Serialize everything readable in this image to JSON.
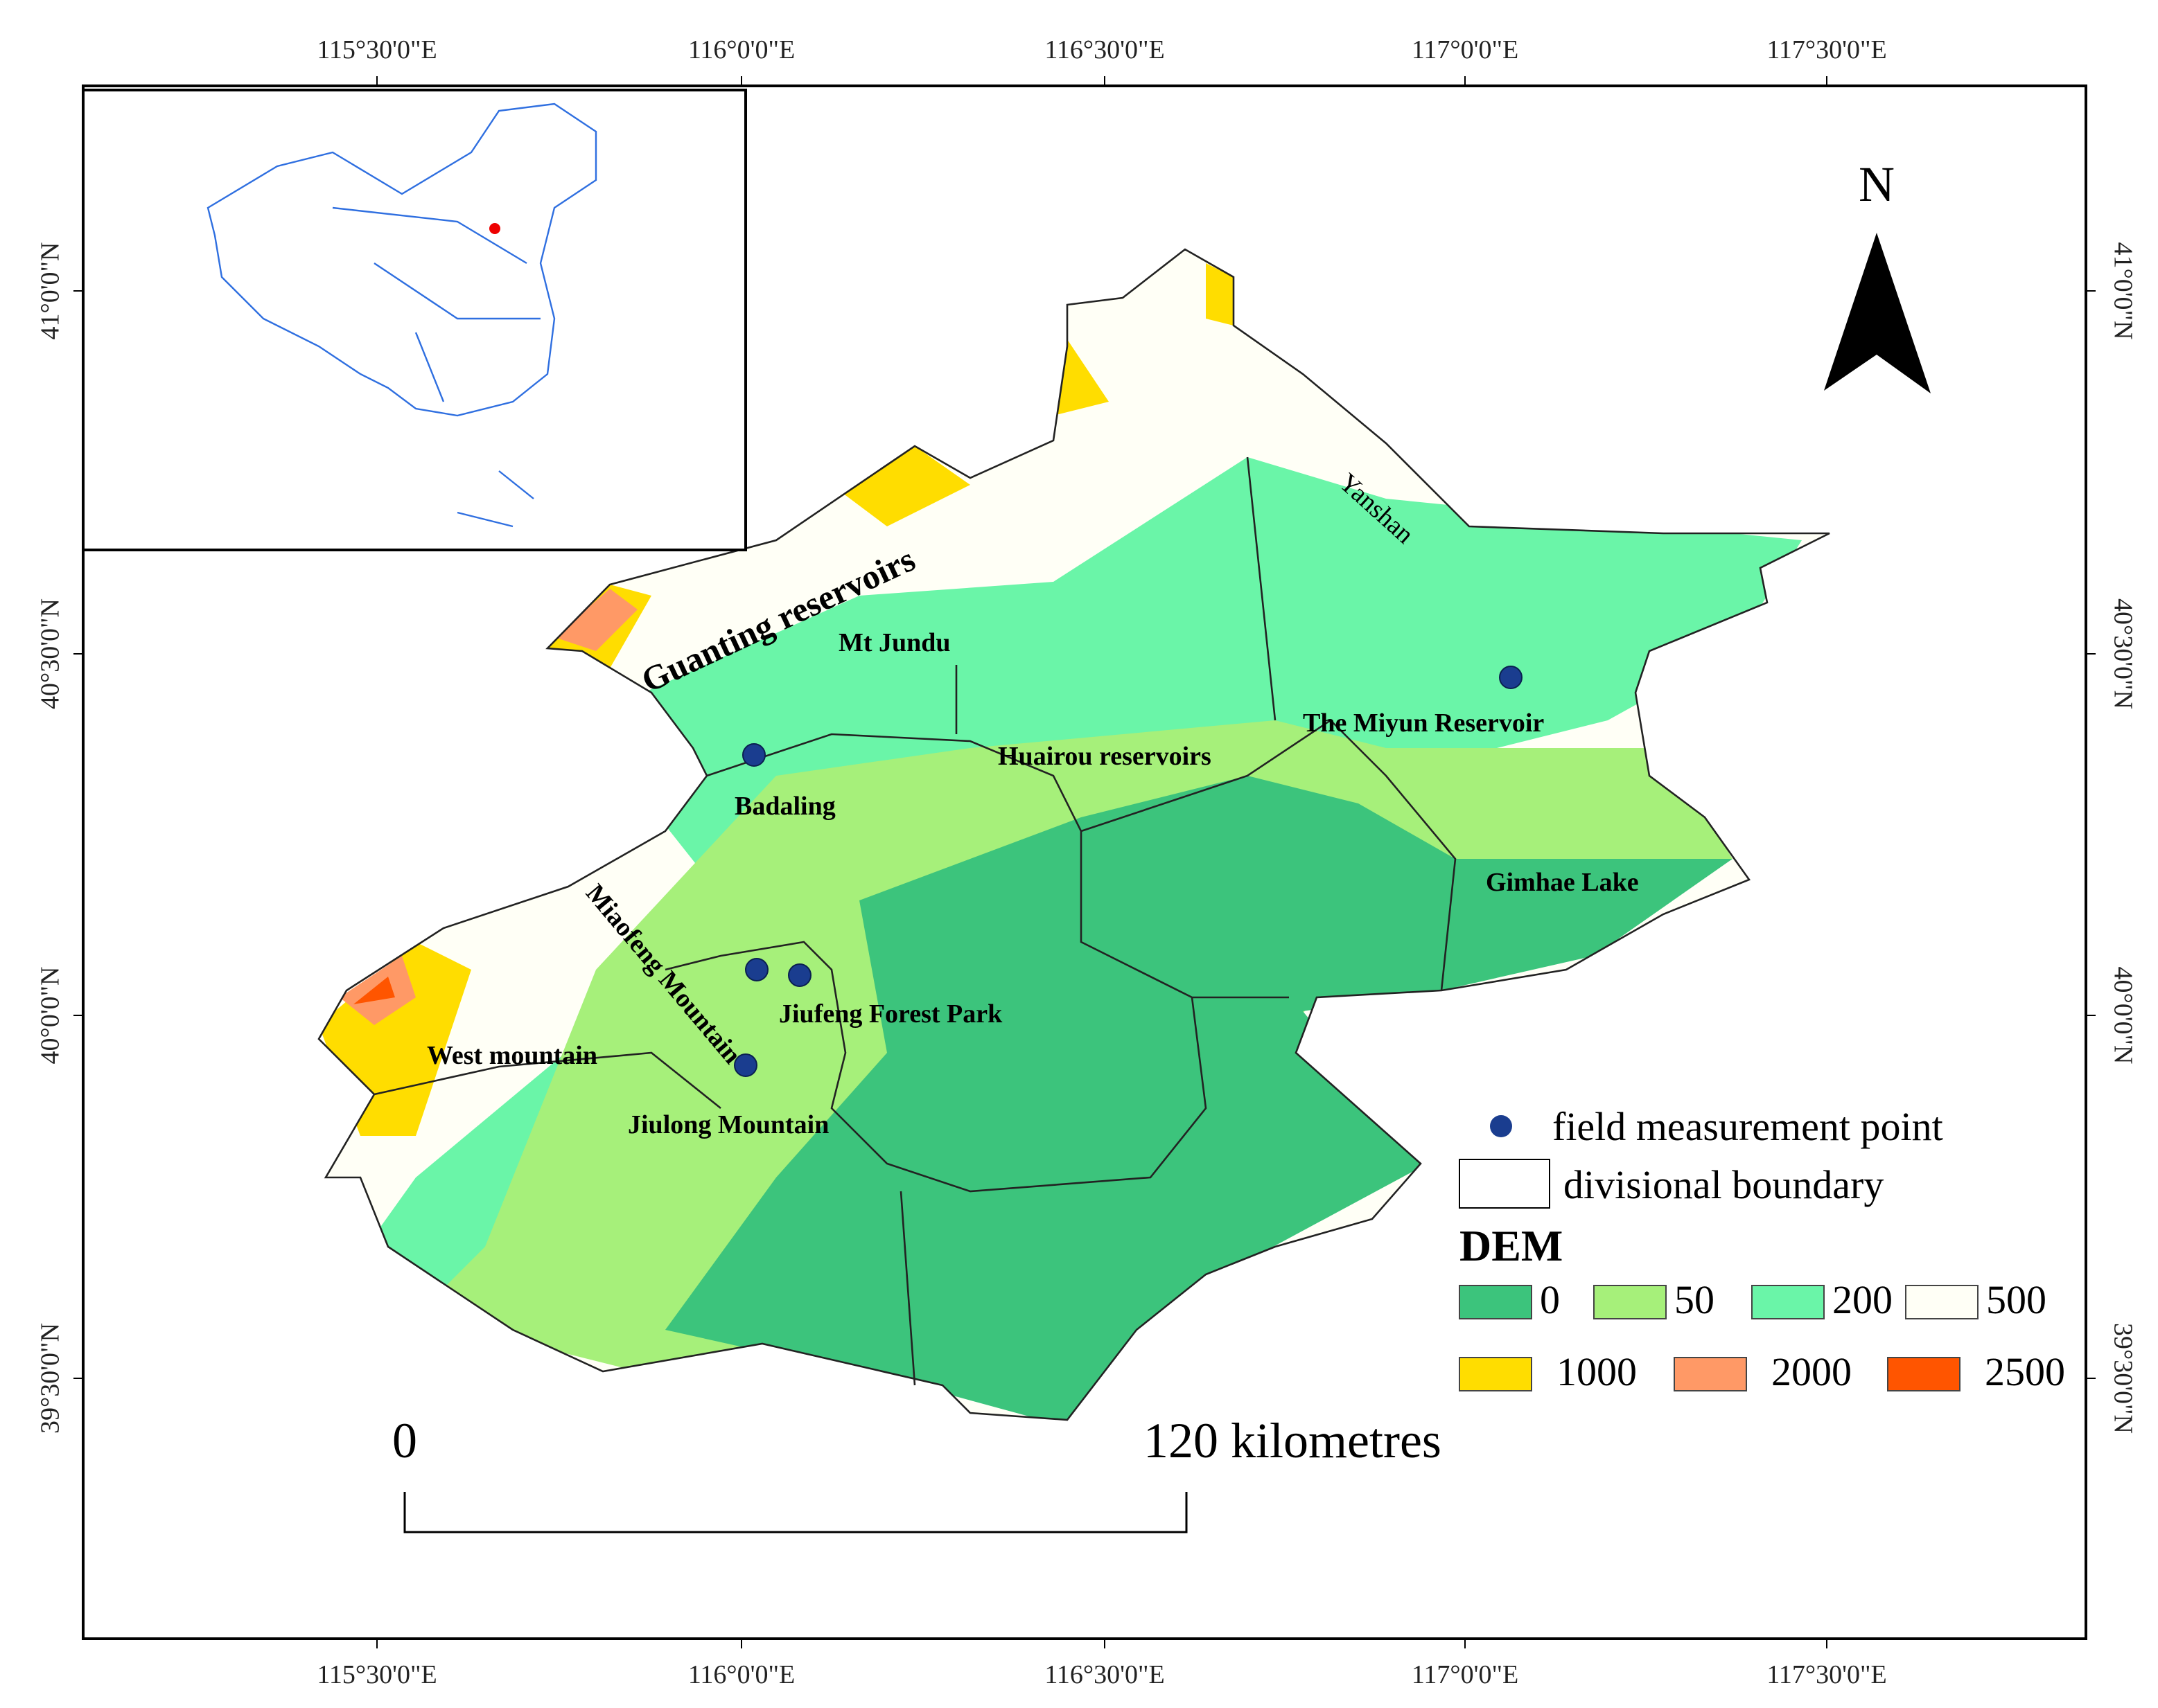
{
  "graticule": {
    "top": [
      "115°30'0\"E",
      "116°0'0\"E",
      "116°30'0\"E",
      "117°0'0\"E",
      "117°30'0\"E"
    ],
    "bottom": [
      "115°30'0\"E",
      "116°0'0\"E",
      "116°30'0\"E",
      "117°0'0\"E",
      "117°30'0\"E"
    ],
    "left": [
      "41°0'0\"N",
      "40°30'0\"N",
      "40°0'0\"N",
      "39°30'0\"N"
    ],
    "right": [
      "41°0'0\"N",
      "40°30'0\"N",
      "40°0'0\"N",
      "39°30'0\"N"
    ]
  },
  "north": "N",
  "places": [
    "Guanting reservoirs",
    "Mt Jundu",
    "Badaling",
    "Huairou reservoirs",
    "The Miyun Reservoir",
    "Yanshan",
    "Gimhae Lake",
    "Miaofeng Mountain",
    "Jiufeng Forest Park",
    "West mountain",
    "Jiulong Mountain"
  ],
  "legend": {
    "point": "field measurement point",
    "boundary": "divisional boundary",
    "title": "DEM",
    "classes": [
      {
        "label": "0",
        "color": "#3cc47c"
      },
      {
        "label": "50",
        "color": "#a6f07a"
      },
      {
        "label": "200",
        "color": "#6af5a8"
      },
      {
        "label": "500",
        "color": "#fffff6"
      },
      {
        "label": "1000",
        "color": "#ffdd00"
      },
      {
        "label": "2000",
        "color": "#ff9966"
      },
      {
        "label": "2500",
        "color": "#ff5500"
      }
    ]
  },
  "scale": {
    "start": "0",
    "end": "120 kilometres"
  }
}
